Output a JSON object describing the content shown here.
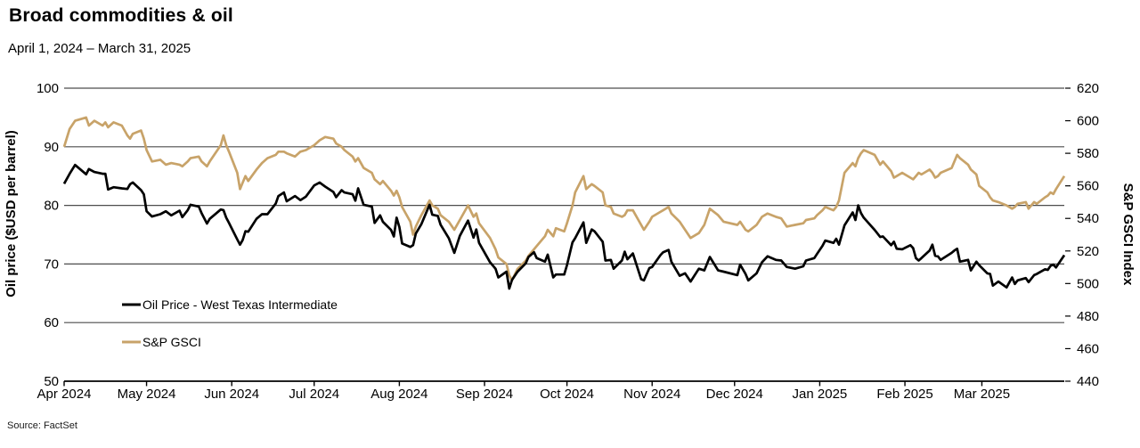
{
  "header": {
    "title": "Broad commodities & oil",
    "subtitle": "April 1, 2024 – March 31, 2025"
  },
  "source": "Source: FactSet",
  "chart_data": {
    "type": "line",
    "title": "Broad commodities & oil",
    "subtitle": "April 1, 2024 – March 31, 2025",
    "grid": {
      "show": true,
      "color": "#4d4d4d",
      "at_left_axis_ticks": true
    },
    "legend_position": "inside-left-lower",
    "left_axis": {
      "label": "Oil price ($USD per barrel)",
      "min": 50,
      "max": 100,
      "ticks": [
        100,
        90,
        80,
        70,
        60,
        50
      ]
    },
    "right_axis": {
      "label": "S&P GSCI Index",
      "min": 440,
      "max": 620,
      "ticks": [
        620,
        600,
        580,
        560,
        540,
        520,
        500,
        480,
        460,
        440
      ]
    },
    "x_axis": {
      "start": "2024-04-01",
      "end": "2025-03-31",
      "ticks": [
        {
          "label": "Apr 2024",
          "date": "2024-04-01"
        },
        {
          "label": "May 2024",
          "date": "2024-05-01"
        },
        {
          "label": "Jun 2024",
          "date": "2024-06-01"
        },
        {
          "label": "Jul 2024",
          "date": "2024-07-01"
        },
        {
          "label": "Aug 2024",
          "date": "2024-08-01"
        },
        {
          "label": "Sep 2024",
          "date": "2024-09-01"
        },
        {
          "label": "Oct 2024",
          "date": "2024-10-01"
        },
        {
          "label": "Nov 2024",
          "date": "2024-11-01"
        },
        {
          "label": "Dec 2024",
          "date": "2024-12-01"
        },
        {
          "label": "Jan 2025",
          "date": "2025-01-01"
        },
        {
          "label": "Feb 2025",
          "date": "2025-02-01"
        },
        {
          "label": "Mar 2025",
          "date": "2025-03-01"
        }
      ]
    },
    "dates": [
      "2024-04-01",
      "2024-04-03",
      "2024-04-05",
      "2024-04-09",
      "2024-04-10",
      "2024-04-12",
      "2024-04-15",
      "2024-04-16",
      "2024-04-17",
      "2024-04-19",
      "2024-04-22",
      "2024-04-24",
      "2024-04-25",
      "2024-04-26",
      "2024-04-29",
      "2024-04-30",
      "2024-05-01",
      "2024-05-03",
      "2024-05-06",
      "2024-05-08",
      "2024-05-10",
      "2024-05-13",
      "2024-05-14",
      "2024-05-16",
      "2024-05-17",
      "2024-05-20",
      "2024-05-21",
      "2024-05-23",
      "2024-05-24",
      "2024-05-28",
      "2024-05-29",
      "2024-05-30",
      "2024-05-31",
      "2024-06-03",
      "2024-06-04",
      "2024-06-05",
      "2024-06-06",
      "2024-06-07",
      "2024-06-10",
      "2024-06-12",
      "2024-06-14",
      "2024-06-17",
      "2024-06-18",
      "2024-06-20",
      "2024-06-21",
      "2024-06-24",
      "2024-06-26",
      "2024-06-28",
      "2024-07-01",
      "2024-07-03",
      "2024-07-05",
      "2024-07-08",
      "2024-07-09",
      "2024-07-11",
      "2024-07-12",
      "2024-07-15",
      "2024-07-16",
      "2024-07-17",
      "2024-07-19",
      "2024-07-22",
      "2024-07-23",
      "2024-07-25",
      "2024-07-26",
      "2024-07-29",
      "2024-07-30",
      "2024-07-31",
      "2024-08-01",
      "2024-08-02",
      "2024-08-05",
      "2024-08-06",
      "2024-08-07",
      "2024-08-09",
      "2024-08-12",
      "2024-08-13",
      "2024-08-15",
      "2024-08-16",
      "2024-08-19",
      "2024-08-21",
      "2024-08-23",
      "2024-08-26",
      "2024-08-28",
      "2024-08-29",
      "2024-08-30",
      "2024-09-03",
      "2024-09-05",
      "2024-09-06",
      "2024-09-09",
      "2024-09-10",
      "2024-09-11",
      "2024-09-13",
      "2024-09-16",
      "2024-09-17",
      "2024-09-19",
      "2024-09-20",
      "2024-09-23",
      "2024-09-24",
      "2024-09-26",
      "2024-09-27",
      "2024-09-30",
      "2024-10-01",
      "2024-10-03",
      "2024-10-04",
      "2024-10-07",
      "2024-10-08",
      "2024-10-10",
      "2024-10-11",
      "2024-10-14",
      "2024-10-15",
      "2024-10-17",
      "2024-10-18",
      "2024-10-21",
      "2024-10-22",
      "2024-10-23",
      "2024-10-25",
      "2024-10-28",
      "2024-10-29",
      "2024-10-31",
      "2024-11-01",
      "2024-11-04",
      "2024-11-05",
      "2024-11-07",
      "2024-11-08",
      "2024-11-11",
      "2024-11-13",
      "2024-11-15",
      "2024-11-18",
      "2024-11-20",
      "2024-11-22",
      "2024-11-25",
      "2024-11-27",
      "2024-12-02",
      "2024-12-03",
      "2024-12-05",
      "2024-12-06",
      "2024-12-09",
      "2024-12-11",
      "2024-12-13",
      "2024-12-16",
      "2024-12-18",
      "2024-12-20",
      "2024-12-23",
      "2024-12-26",
      "2024-12-27",
      "2024-12-30",
      "2024-12-31",
      "2025-01-02",
      "2025-01-03",
      "2025-01-06",
      "2025-01-07",
      "2025-01-08",
      "2025-01-10",
      "2025-01-13",
      "2025-01-14",
      "2025-01-15",
      "2025-01-16",
      "2025-01-17",
      "2025-01-21",
      "2025-01-23",
      "2025-01-24",
      "2025-01-27",
      "2025-01-28",
      "2025-01-29",
      "2025-01-31",
      "2025-02-03",
      "2025-02-04",
      "2025-02-05",
      "2025-02-06",
      "2025-02-07",
      "2025-02-10",
      "2025-02-11",
      "2025-02-12",
      "2025-02-13",
      "2025-02-14",
      "2025-02-18",
      "2025-02-19",
      "2025-02-20",
      "2025-02-21",
      "2025-02-24",
      "2025-02-25",
      "2025-02-27",
      "2025-02-28",
      "2025-03-03",
      "2025-03-04",
      "2025-03-05",
      "2025-03-07",
      "2025-03-10",
      "2025-03-12",
      "2025-03-13",
      "2025-03-14",
      "2025-03-17",
      "2025-03-18",
      "2025-03-20",
      "2025-03-21",
      "2025-03-24",
      "2025-03-25",
      "2025-03-26",
      "2025-03-27",
      "2025-03-28",
      "2025-03-31"
    ],
    "series": [
      {
        "name": "Oil Price - West Texas Intermediate",
        "axis": "left",
        "color": "#000000",
        "values": [
          83.7,
          85.4,
          86.9,
          85.3,
          86.2,
          85.7,
          85.4,
          85.4,
          82.7,
          83.1,
          82.9,
          82.8,
          83.6,
          83.9,
          82.6,
          81.9,
          79.0,
          78.1,
          78.5,
          79.0,
          78.3,
          79.1,
          78.0,
          79.2,
          80.1,
          79.8,
          78.7,
          76.9,
          77.7,
          79.3,
          79.2,
          77.9,
          77.0,
          74.2,
          73.3,
          74.1,
          75.6,
          75.5,
          77.7,
          78.5,
          78.5,
          80.3,
          81.6,
          82.2,
          80.7,
          81.6,
          80.9,
          81.5,
          83.4,
          83.9,
          83.2,
          82.3,
          81.4,
          82.6,
          82.2,
          81.9,
          80.8,
          82.9,
          80.1,
          79.8,
          77.0,
          78.3,
          77.2,
          75.8,
          74.7,
          77.9,
          76.3,
          73.5,
          72.9,
          73.2,
          75.2,
          76.8,
          80.1,
          78.4,
          78.2,
          76.7,
          74.4,
          71.9,
          74.8,
          77.4,
          74.5,
          75.9,
          73.6,
          70.3,
          69.2,
          67.7,
          68.7,
          65.8,
          67.3,
          68.7,
          70.1,
          71.2,
          72.0,
          71.0,
          70.4,
          71.6,
          67.7,
          68.2,
          68.2,
          69.8,
          73.7,
          74.4,
          77.1,
          73.6,
          75.9,
          75.6,
          73.8,
          70.6,
          70.7,
          69.2,
          70.6,
          72.1,
          70.8,
          71.8,
          67.4,
          67.2,
          69.3,
          69.5,
          71.5,
          72.0,
          72.4,
          70.4,
          68.0,
          68.4,
          67.0,
          69.2,
          68.9,
          71.2,
          68.9,
          68.7,
          68.1,
          69.9,
          68.3,
          67.2,
          68.4,
          70.3,
          71.3,
          70.7,
          70.6,
          69.5,
          69.2,
          69.6,
          70.6,
          71.0,
          71.7,
          73.1,
          74.0,
          73.6,
          74.3,
          73.3,
          76.6,
          78.8,
          77.5,
          80.0,
          78.7,
          77.9,
          75.8,
          74.6,
          74.7,
          73.2,
          73.8,
          72.6,
          72.5,
          73.2,
          72.7,
          71.0,
          70.6,
          71.0,
          72.3,
          73.3,
          71.4,
          71.3,
          70.7,
          71.9,
          72.3,
          72.6,
          70.4,
          70.7,
          68.9,
          70.4,
          69.8,
          68.4,
          68.3,
          66.3,
          67.0,
          66.0,
          67.7,
          66.6,
          67.2,
          67.6,
          66.9,
          68.1,
          68.3,
          69.1,
          69.0,
          69.7,
          69.9,
          69.4,
          71.5
        ]
      },
      {
        "name": "S&P GSCI",
        "axis": "right",
        "color": "#C8A369",
        "values": [
          584,
          595,
          600,
          602,
          597,
          600,
          597,
          599,
          596,
          599,
          597,
          591,
          589,
          592,
          594,
          589,
          582,
          575,
          576,
          573,
          574,
          573,
          572,
          575,
          577,
          578,
          575,
          572,
          575,
          585,
          591,
          585,
          581,
          568,
          558,
          562,
          566,
          563,
          570,
          574,
          577,
          579,
          581,
          581,
          580,
          578,
          581,
          582,
          585,
          588,
          590,
          589,
          586,
          584,
          582,
          578,
          575,
          577,
          571,
          568,
          564,
          561,
          563,
          557,
          554,
          557,
          553,
          547,
          538,
          530,
          535,
          542,
          551,
          548,
          546,
          542,
          538,
          533,
          539,
          548,
          541,
          543,
          537,
          528,
          521,
          516,
          512,
          505,
          502,
          509,
          514,
          517,
          521,
          523,
          529,
          533,
          529,
          534,
          532,
          537,
          548,
          556,
          566,
          558,
          561,
          560,
          556,
          548,
          547,
          543,
          541,
          542,
          545,
          545,
          536,
          533,
          538,
          541,
          544,
          545,
          547,
          543,
          538,
          533,
          528,
          531,
          536,
          546,
          542,
          538,
          536,
          538,
          533,
          532,
          536,
          541,
          543,
          541,
          540,
          535,
          536,
          537,
          539,
          540,
          542,
          545,
          547,
          545,
          547,
          551,
          568,
          574,
          572,
          577,
          580,
          582,
          579,
          573,
          575,
          569,
          565,
          566,
          568,
          565,
          564,
          566,
          568,
          567,
          570,
          568,
          565,
          566,
          568,
          571,
          575,
          579,
          577,
          573,
          570,
          567,
          560,
          556,
          553,
          551,
          550,
          548,
          546,
          547,
          549,
          550,
          546,
          550,
          549,
          553,
          554,
          556,
          555,
          558,
          566
        ]
      }
    ]
  }
}
